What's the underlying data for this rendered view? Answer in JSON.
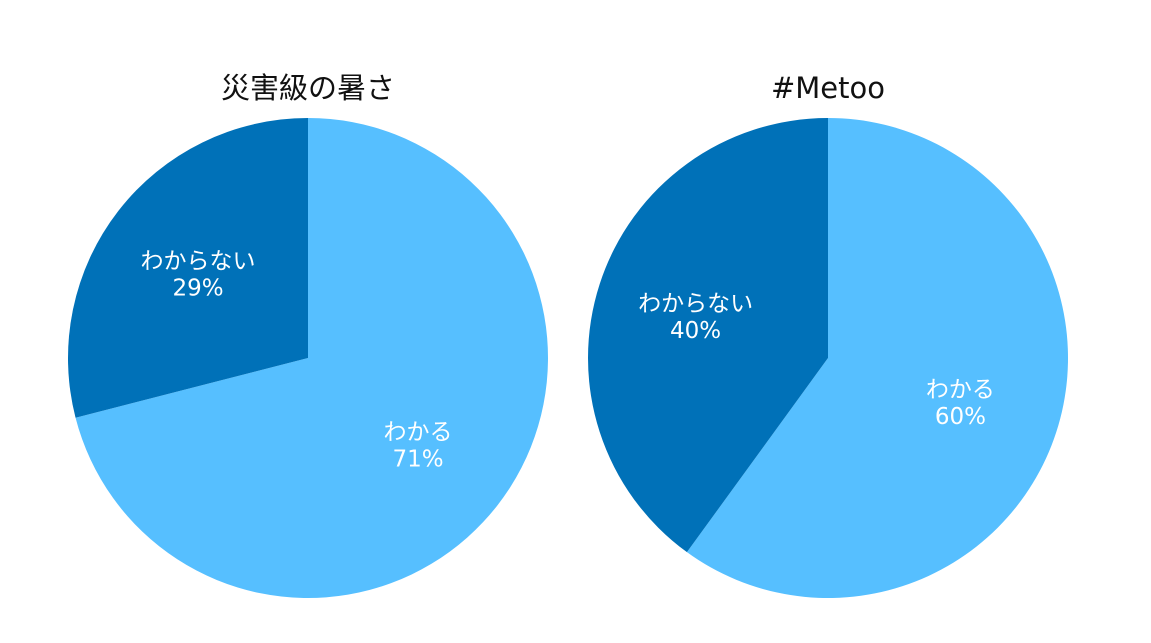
{
  "chart_data": [
    {
      "type": "pie",
      "title": "災害級の暑さ",
      "labels": [
        "わかる",
        "わからない"
      ],
      "values": [
        71,
        29
      ],
      "value_labels": [
        "71%",
        "29%"
      ],
      "colors": [
        "#56bfff",
        "#0071b8"
      ],
      "legend": "none"
    },
    {
      "type": "pie",
      "title": "#Metoo",
      "labels": [
        "わかる",
        "わからない"
      ],
      "values": [
        60,
        40
      ],
      "value_labels": [
        "60%",
        "40%"
      ],
      "colors": [
        "#56bfff",
        "#0071b8"
      ],
      "legend": "none"
    }
  ]
}
